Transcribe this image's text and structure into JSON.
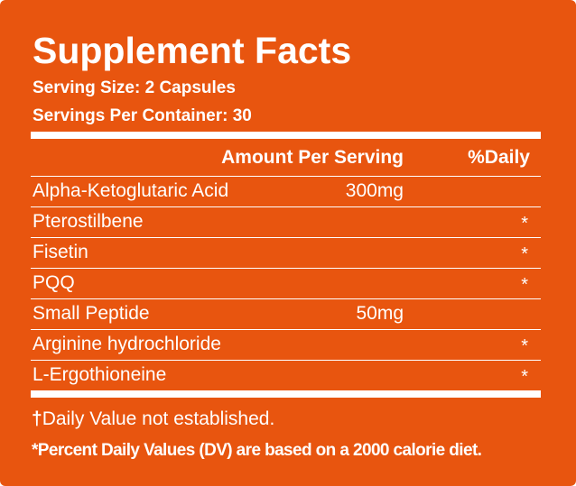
{
  "label": {
    "title": "Supplement Facts",
    "serving_size": "Serving Size: 2 Capsules",
    "servings_per_container": "Servings Per Container: 30",
    "header": {
      "amount": "Amount Per Serving",
      "daily": "%Daily"
    },
    "ingredients": [
      {
        "name": "Alpha-Ketoglutaric Acid",
        "amount": "300mg",
        "dv": ""
      },
      {
        "name": "Pterostilbene",
        "amount": "",
        "dv": "*"
      },
      {
        "name": "Fisetin",
        "amount": "",
        "dv": "*"
      },
      {
        "name": "PQQ",
        "amount": "",
        "dv": "*"
      },
      {
        "name": "Small Peptide",
        "amount": "50mg",
        "dv": ""
      },
      {
        "name": "Arginine hydrochloride",
        "amount": "",
        "dv": "*"
      },
      {
        "name": "L-Ergothioneine",
        "amount": "",
        "dv": "*"
      }
    ],
    "footnote_dagger_symbol": "†",
    "footnote_dagger_text": "Daily Value not established.",
    "footnote_dv": "*Percent Daily Values (DV) are based on a 2000 calorie diet."
  },
  "colors": {
    "background": "#e8550f",
    "text": "#ffffff"
  }
}
